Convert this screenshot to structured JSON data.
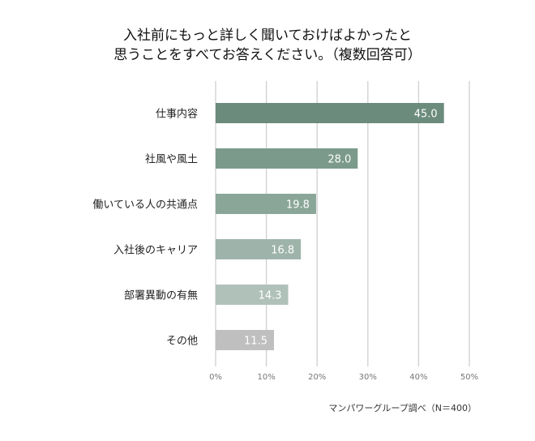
{
  "chart_data": {
    "type": "bar",
    "orientation": "horizontal",
    "title_lines": [
      "入社前にもっと詳しく聞いておけばよかったと",
      "思うことをすべてお答えください。（複数回答可）"
    ],
    "categories": [
      "仕事内容",
      "社風や風土",
      "働いている人の共通点",
      "入社後のキャリア",
      "部署異動の有無",
      "その他"
    ],
    "values": [
      45.0,
      28.0,
      19.8,
      16.8,
      14.3,
      11.5
    ],
    "value_labels": [
      "45.0",
      "28.0",
      "19.8",
      "16.8",
      "14.3",
      "11.5"
    ],
    "colors": [
      "#6b8b7d",
      "#7b9a8c",
      "#8aa699",
      "#9eb4aa",
      "#b0c1ba",
      "#bfbfbf"
    ],
    "xlim": [
      0,
      50
    ],
    "xticks": [
      0,
      10,
      20,
      30,
      40,
      50
    ],
    "xtick_labels": [
      "0%",
      "10%",
      "20%",
      "30%",
      "40%",
      "50%"
    ],
    "grid": true,
    "xlabel": "",
    "ylabel": "",
    "source": "マンパワーグループ調べ（N＝400）"
  }
}
